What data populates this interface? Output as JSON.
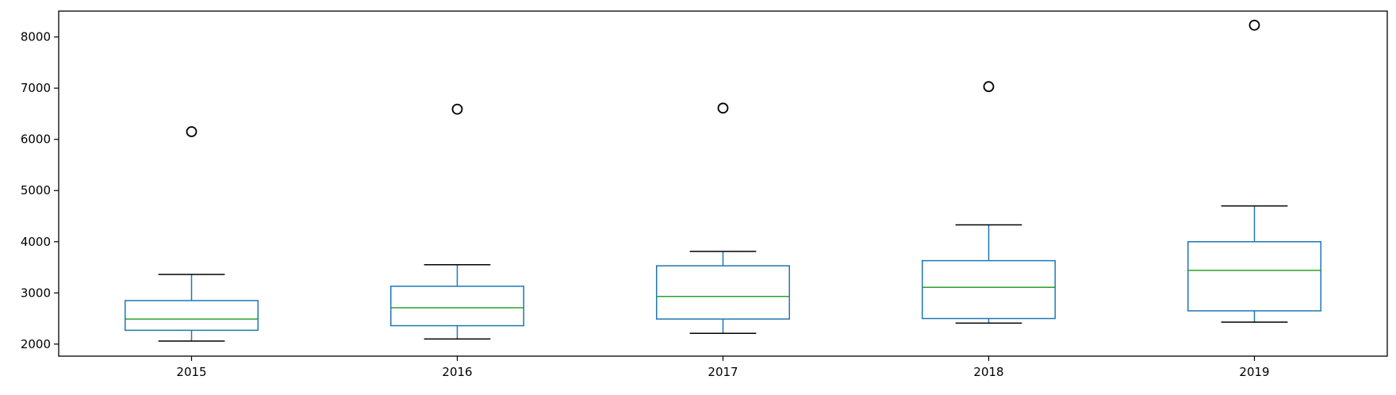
{
  "chart_data": {
    "type": "box",
    "categories": [
      "2015",
      "2016",
      "2017",
      "2018",
      "2019"
    ],
    "boxes": [
      {
        "label": "2015",
        "whisker_low": 2060,
        "q1": 2270,
        "median": 2490,
        "q3": 2850,
        "whisker_high": 3360,
        "outliers": [
          6150
        ]
      },
      {
        "label": "2016",
        "whisker_low": 2100,
        "q1": 2360,
        "median": 2710,
        "q3": 3130,
        "whisker_high": 3550,
        "outliers": [
          6590
        ]
      },
      {
        "label": "2017",
        "whisker_low": 2210,
        "q1": 2490,
        "median": 2930,
        "q3": 3530,
        "whisker_high": 3810,
        "outliers": [
          6610
        ]
      },
      {
        "label": "2018",
        "whisker_low": 2410,
        "q1": 2500,
        "median": 3110,
        "q3": 3630,
        "whisker_high": 4330,
        "outliers": [
          7030
        ]
      },
      {
        "label": "2019",
        "whisker_low": 2430,
        "q1": 2650,
        "median": 3440,
        "q3": 4000,
        "whisker_high": 4700,
        "outliers": [
          8230
        ]
      }
    ],
    "yticks": [
      2000,
      3000,
      4000,
      5000,
      6000,
      7000,
      8000
    ],
    "ylim": [
      1765,
      8505
    ],
    "title": "",
    "xlabel": "",
    "ylabel": "",
    "grid": false,
    "colors": {
      "box": "#1f77b4",
      "median": "#2ca02c",
      "cap": "#000000",
      "flier": "#000000"
    }
  }
}
